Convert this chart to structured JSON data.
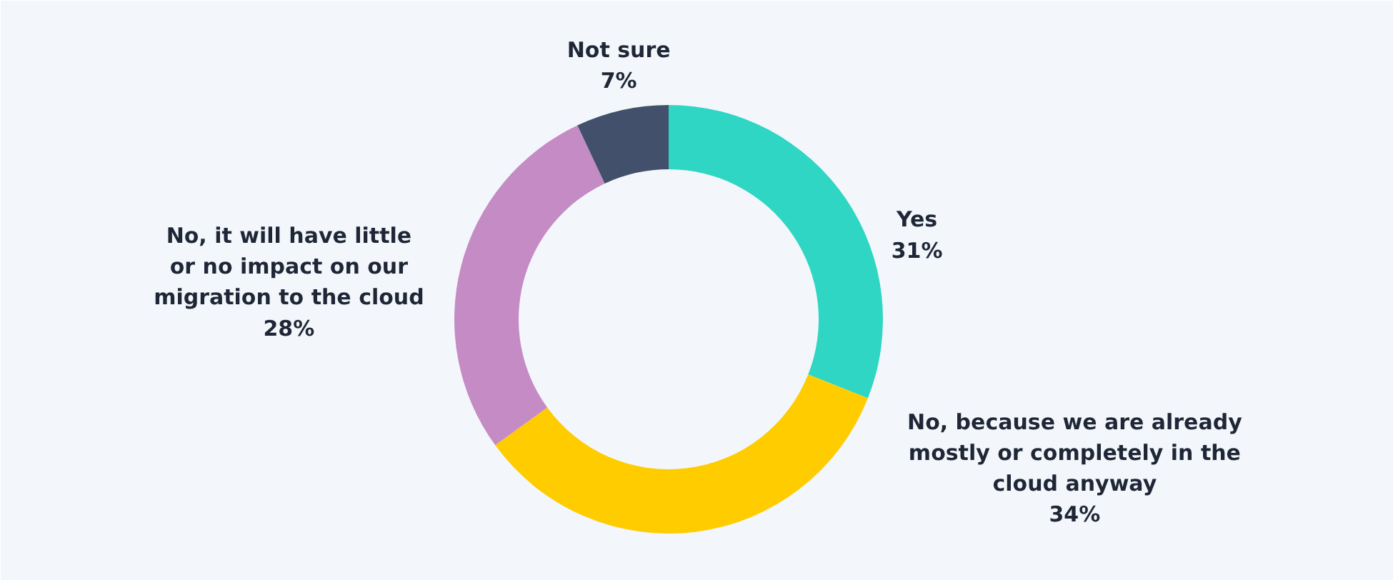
{
  "chart_data": {
    "type": "donut",
    "categories": [
      "Yes",
      "No, because we are already mostly or completely in the cloud anyway",
      "No, it will have little or no impact on our migration to the cloud",
      "Not sure"
    ],
    "values": [
      31,
      34,
      28,
      7
    ],
    "colors": [
      "#2fd6c3",
      "#ffcc00",
      "#c58bc5",
      "#43506b"
    ],
    "value_labels": [
      "31%",
      "34%",
      "28%",
      "7%"
    ]
  }
}
